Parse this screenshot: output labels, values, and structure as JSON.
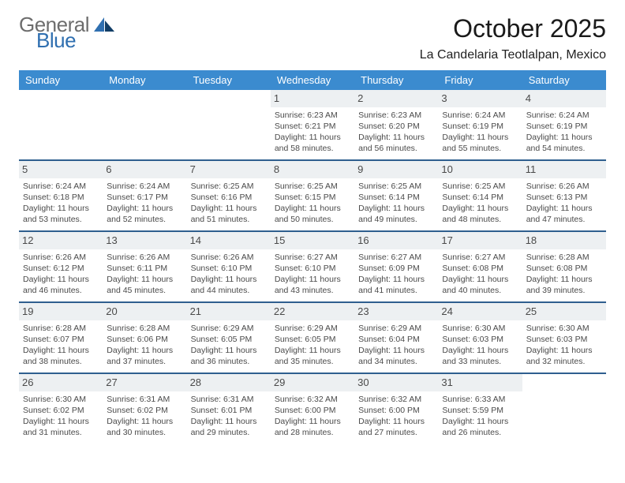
{
  "logo": {
    "word1": "General",
    "word2": "Blue"
  },
  "header": {
    "title": "October 2025",
    "subtitle": "La Candelaria Teotlalpan, Mexico"
  },
  "colors": {
    "header_blue": "#3b8bcf",
    "divider": "#2f5f8f",
    "row_alt": "#edf0f2",
    "text": "#1a1a1a",
    "muted": "#4a4a4a",
    "logo_gray": "#6d6d6d",
    "logo_blue": "#2f6fb0",
    "page_bg": "#ffffff"
  },
  "weekdays": [
    "Sunday",
    "Monday",
    "Tuesday",
    "Wednesday",
    "Thursday",
    "Friday",
    "Saturday"
  ],
  "layout": {
    "columns": 7,
    "first_day_column_index": 3,
    "days_in_month": 31,
    "cell_fontsize_pt": 8,
    "daynum_fontsize_pt": 10,
    "title_fontsize_pt": 24,
    "subtitle_fontsize_pt": 12
  },
  "days": [
    {
      "n": 1,
      "sunrise": "6:23 AM",
      "sunset": "6:21 PM",
      "daylight": "11 hours and 58 minutes."
    },
    {
      "n": 2,
      "sunrise": "6:23 AM",
      "sunset": "6:20 PM",
      "daylight": "11 hours and 56 minutes."
    },
    {
      "n": 3,
      "sunrise": "6:24 AM",
      "sunset": "6:19 PM",
      "daylight": "11 hours and 55 minutes."
    },
    {
      "n": 4,
      "sunrise": "6:24 AM",
      "sunset": "6:19 PM",
      "daylight": "11 hours and 54 minutes."
    },
    {
      "n": 5,
      "sunrise": "6:24 AM",
      "sunset": "6:18 PM",
      "daylight": "11 hours and 53 minutes."
    },
    {
      "n": 6,
      "sunrise": "6:24 AM",
      "sunset": "6:17 PM",
      "daylight": "11 hours and 52 minutes."
    },
    {
      "n": 7,
      "sunrise": "6:25 AM",
      "sunset": "6:16 PM",
      "daylight": "11 hours and 51 minutes."
    },
    {
      "n": 8,
      "sunrise": "6:25 AM",
      "sunset": "6:15 PM",
      "daylight": "11 hours and 50 minutes."
    },
    {
      "n": 9,
      "sunrise": "6:25 AM",
      "sunset": "6:14 PM",
      "daylight": "11 hours and 49 minutes."
    },
    {
      "n": 10,
      "sunrise": "6:25 AM",
      "sunset": "6:14 PM",
      "daylight": "11 hours and 48 minutes."
    },
    {
      "n": 11,
      "sunrise": "6:26 AM",
      "sunset": "6:13 PM",
      "daylight": "11 hours and 47 minutes."
    },
    {
      "n": 12,
      "sunrise": "6:26 AM",
      "sunset": "6:12 PM",
      "daylight": "11 hours and 46 minutes."
    },
    {
      "n": 13,
      "sunrise": "6:26 AM",
      "sunset": "6:11 PM",
      "daylight": "11 hours and 45 minutes."
    },
    {
      "n": 14,
      "sunrise": "6:26 AM",
      "sunset": "6:10 PM",
      "daylight": "11 hours and 44 minutes."
    },
    {
      "n": 15,
      "sunrise": "6:27 AM",
      "sunset": "6:10 PM",
      "daylight": "11 hours and 43 minutes."
    },
    {
      "n": 16,
      "sunrise": "6:27 AM",
      "sunset": "6:09 PM",
      "daylight": "11 hours and 41 minutes."
    },
    {
      "n": 17,
      "sunrise": "6:27 AM",
      "sunset": "6:08 PM",
      "daylight": "11 hours and 40 minutes."
    },
    {
      "n": 18,
      "sunrise": "6:28 AM",
      "sunset": "6:08 PM",
      "daylight": "11 hours and 39 minutes."
    },
    {
      "n": 19,
      "sunrise": "6:28 AM",
      "sunset": "6:07 PM",
      "daylight": "11 hours and 38 minutes."
    },
    {
      "n": 20,
      "sunrise": "6:28 AM",
      "sunset": "6:06 PM",
      "daylight": "11 hours and 37 minutes."
    },
    {
      "n": 21,
      "sunrise": "6:29 AM",
      "sunset": "6:05 PM",
      "daylight": "11 hours and 36 minutes."
    },
    {
      "n": 22,
      "sunrise": "6:29 AM",
      "sunset": "6:05 PM",
      "daylight": "11 hours and 35 minutes."
    },
    {
      "n": 23,
      "sunrise": "6:29 AM",
      "sunset": "6:04 PM",
      "daylight": "11 hours and 34 minutes."
    },
    {
      "n": 24,
      "sunrise": "6:30 AM",
      "sunset": "6:03 PM",
      "daylight": "11 hours and 33 minutes."
    },
    {
      "n": 25,
      "sunrise": "6:30 AM",
      "sunset": "6:03 PM",
      "daylight": "11 hours and 32 minutes."
    },
    {
      "n": 26,
      "sunrise": "6:30 AM",
      "sunset": "6:02 PM",
      "daylight": "11 hours and 31 minutes."
    },
    {
      "n": 27,
      "sunrise": "6:31 AM",
      "sunset": "6:02 PM",
      "daylight": "11 hours and 30 minutes."
    },
    {
      "n": 28,
      "sunrise": "6:31 AM",
      "sunset": "6:01 PM",
      "daylight": "11 hours and 29 minutes."
    },
    {
      "n": 29,
      "sunrise": "6:32 AM",
      "sunset": "6:00 PM",
      "daylight": "11 hours and 28 minutes."
    },
    {
      "n": 30,
      "sunrise": "6:32 AM",
      "sunset": "6:00 PM",
      "daylight": "11 hours and 27 minutes."
    },
    {
      "n": 31,
      "sunrise": "6:33 AM",
      "sunset": "5:59 PM",
      "daylight": "11 hours and 26 minutes."
    }
  ],
  "labels": {
    "sunrise": "Sunrise:",
    "sunset": "Sunset:",
    "daylight": "Daylight:"
  }
}
